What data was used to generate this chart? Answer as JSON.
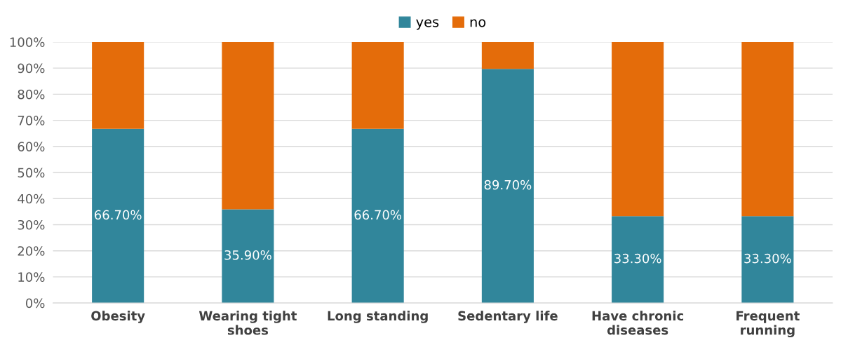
{
  "chart_data": {
    "type": "bar",
    "stacked": true,
    "categories": [
      "Obesity",
      "Wearing tight shoes",
      "Long standing",
      "Sedentary life",
      "Have chronic diseases",
      "Frequent running"
    ],
    "series": [
      {
        "name": "yes",
        "color": "#31869b",
        "values": [
          66.7,
          35.9,
          66.7,
          89.7,
          33.3,
          33.3
        ],
        "value_labels": [
          "66.70%",
          "35.90%",
          "66.70%",
          "89.70%",
          "33.30%",
          "33.30%"
        ]
      },
      {
        "name": "no",
        "color": "#e46c0a",
        "values": [
          33.3,
          64.1,
          33.3,
          10.3,
          66.7,
          66.7
        ]
      }
    ],
    "ylim": [
      0,
      100
    ],
    "yticks": [
      {
        "value": 0,
        "label": "0%"
      },
      {
        "value": 10,
        "label": "10%"
      },
      {
        "value": 20,
        "label": "20%"
      },
      {
        "value": 30,
        "label": "30%"
      },
      {
        "value": 40,
        "label": "40%"
      },
      {
        "value": 50,
        "label": "50%"
      },
      {
        "value": 60,
        "label": "60%"
      },
      {
        "value": 70,
        "label": "70%"
      },
      {
        "value": 80,
        "label": "80%"
      },
      {
        "value": 90,
        "label": "90%"
      },
      {
        "value": 100,
        "label": "100%"
      }
    ],
    "grid": "y",
    "legend": "top"
  }
}
